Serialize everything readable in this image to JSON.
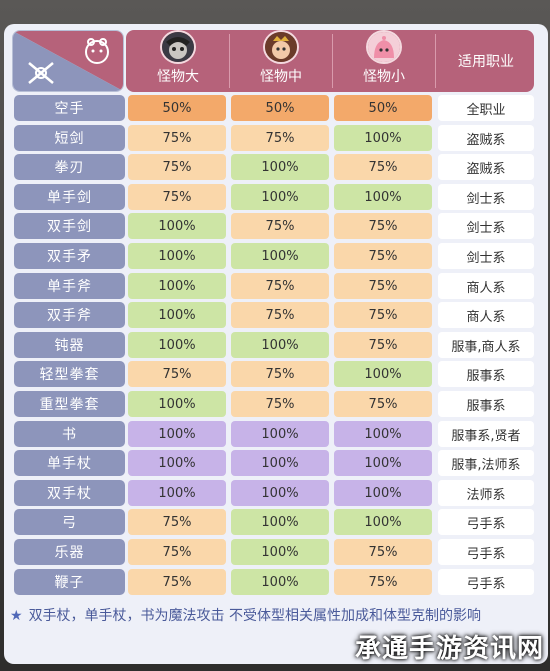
{
  "header": {
    "monsters": [
      {
        "label": "怪物大",
        "icon": "large-monster-icon"
      },
      {
        "label": "怪物中",
        "icon": "medium-monster-icon"
      },
      {
        "label": "怪物小",
        "icon": "small-monster-icon"
      }
    ],
    "job_header": "适用职业"
  },
  "rows": [
    {
      "weapon": "空手",
      "large": "50%",
      "medium": "50%",
      "small": "50%",
      "job": "全职业",
      "colors": [
        "orange",
        "orange",
        "orange"
      ]
    },
    {
      "weapon": "短剑",
      "large": "75%",
      "medium": "75%",
      "small": "100%",
      "job": "盗贼系",
      "colors": [
        "peach",
        "peach",
        "green"
      ]
    },
    {
      "weapon": "拳刃",
      "large": "75%",
      "medium": "100%",
      "small": "75%",
      "job": "盗贼系",
      "colors": [
        "peach",
        "green",
        "peach"
      ]
    },
    {
      "weapon": "单手剑",
      "large": "75%",
      "medium": "100%",
      "small": "100%",
      "job": "剑士系",
      "colors": [
        "peach",
        "green",
        "green"
      ]
    },
    {
      "weapon": "双手剑",
      "large": "100%",
      "medium": "75%",
      "small": "75%",
      "job": "剑士系",
      "colors": [
        "green",
        "peach",
        "peach"
      ]
    },
    {
      "weapon": "双手矛",
      "large": "100%",
      "medium": "100%",
      "small": "75%",
      "job": "剑士系",
      "colors": [
        "green",
        "green",
        "peach"
      ]
    },
    {
      "weapon": "单手斧",
      "large": "100%",
      "medium": "75%",
      "small": "75%",
      "job": "商人系",
      "colors": [
        "green",
        "peach",
        "peach"
      ]
    },
    {
      "weapon": "双手斧",
      "large": "100%",
      "medium": "75%",
      "small": "75%",
      "job": "商人系",
      "colors": [
        "green",
        "peach",
        "peach"
      ]
    },
    {
      "weapon": "钝器",
      "large": "100%",
      "medium": "100%",
      "small": "75%",
      "job": "服事,商人系",
      "colors": [
        "green",
        "green",
        "peach"
      ]
    },
    {
      "weapon": "轻型拳套",
      "large": "75%",
      "medium": "75%",
      "small": "100%",
      "job": "服事系",
      "colors": [
        "peach",
        "peach",
        "green"
      ]
    },
    {
      "weapon": "重型拳套",
      "large": "100%",
      "medium": "75%",
      "small": "75%",
      "job": "服事系",
      "colors": [
        "green",
        "peach",
        "peach"
      ]
    },
    {
      "weapon": "书",
      "large": "100%",
      "medium": "100%",
      "small": "100%",
      "job": "服事系,贤者",
      "colors": [
        "purple",
        "purple",
        "purple"
      ]
    },
    {
      "weapon": "单手杖",
      "large": "100%",
      "medium": "100%",
      "small": "100%",
      "job": "服事,法师系",
      "colors": [
        "purple",
        "purple",
        "purple"
      ]
    },
    {
      "weapon": "双手杖",
      "large": "100%",
      "medium": "100%",
      "small": "100%",
      "job": "法师系",
      "colors": [
        "purple",
        "purple",
        "purple"
      ]
    },
    {
      "weapon": "弓",
      "large": "75%",
      "medium": "100%",
      "small": "100%",
      "job": "弓手系",
      "colors": [
        "peach",
        "green",
        "green"
      ]
    },
    {
      "weapon": "乐器",
      "large": "75%",
      "medium": "100%",
      "small": "75%",
      "job": "弓手系",
      "colors": [
        "peach",
        "green",
        "peach"
      ]
    },
    {
      "weapon": "鞭子",
      "large": "75%",
      "medium": "100%",
      "small": "75%",
      "job": "弓手系",
      "colors": [
        "peach",
        "green",
        "peach"
      ]
    }
  ],
  "note": "双手杖，单手杖，书为魔法攻击 不受体型相关属性加成和体型克制的影响",
  "watermark": "承通手游资讯网",
  "palette": {
    "orange": "#f3a96a",
    "peach": "#fad7aa",
    "green": "#cde5a5",
    "purple": "#c7b3e8",
    "header": "#b6627a",
    "label": "#8d95bb"
  }
}
